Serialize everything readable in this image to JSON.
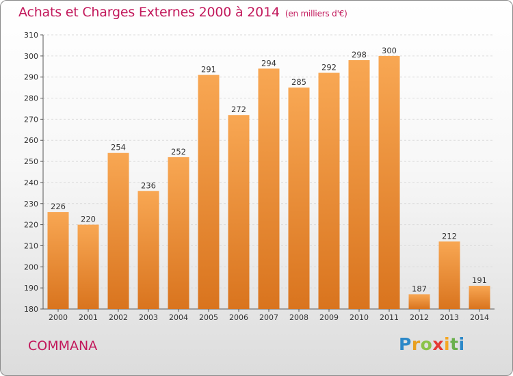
{
  "header": {
    "title": "Achats et Charges Externes 2000 à 2014",
    "unit": "(en milliers d'€)"
  },
  "footer": {
    "commune": "COMMANA",
    "logo_letters": [
      "P",
      "r",
      "o",
      "x",
      "i",
      "t",
      "i"
    ],
    "logo_colors": [
      "#2b88c8",
      "#e8a020",
      "#8bc34a",
      "#e53935",
      "#f5a623",
      "#6ab04c",
      "#2b88c8"
    ]
  },
  "colors": {
    "bar_light": "#f8a753",
    "bar_dark": "#d9741e",
    "title": "#c2185b"
  },
  "chart_data": {
    "type": "bar",
    "title": "Achats et Charges Externes 2000 à 2014",
    "xlabel": "",
    "ylabel": "",
    "categories": [
      "2000",
      "2001",
      "2002",
      "2003",
      "2004",
      "2005",
      "2006",
      "2007",
      "2008",
      "2009",
      "2010",
      "2011",
      "2012",
      "2013",
      "2014"
    ],
    "values": [
      226,
      220,
      254,
      236,
      252,
      291,
      272,
      294,
      285,
      292,
      298,
      300,
      187,
      212,
      191
    ],
    "ylim": [
      180,
      310
    ],
    "yticks": [
      180,
      190,
      200,
      210,
      220,
      230,
      240,
      250,
      260,
      270,
      280,
      290,
      300,
      310
    ],
    "grid": true
  }
}
